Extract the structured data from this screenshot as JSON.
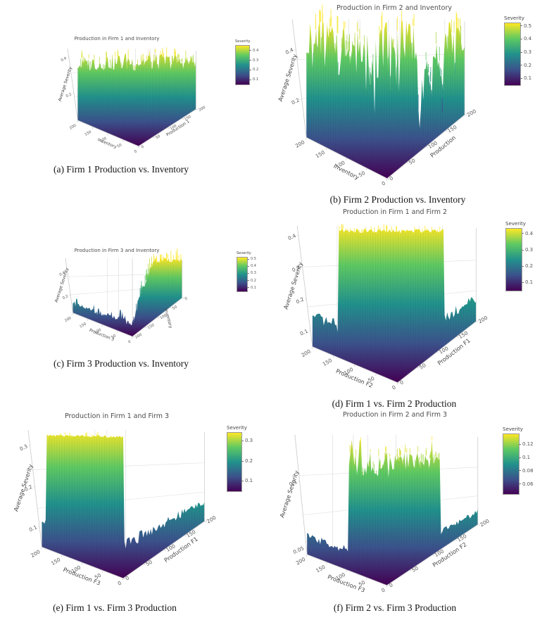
{
  "colors": {
    "viridis": [
      "#440154",
      "#3b528b",
      "#21918c",
      "#5ec962",
      "#fde725"
    ],
    "title_text": "#4d4d4d",
    "tick_text": "#555555",
    "axis_label_text": "#444444",
    "caption_text": "#141414",
    "frame_line": "#c9c9c9",
    "grid_line": "#e4e4e4"
  },
  "chart_data": [
    {
      "panel": "a",
      "type": "surface-3d",
      "title": "Production in Firm 1 and Inventory",
      "caption": "(a) Firm 1 Production vs. Inventory",
      "colormap": "viridis",
      "surface_shape": "dense-spiky-box-full-height",
      "axes": {
        "z": {
          "label": "Average Severity",
          "ticks": [
            "0.2",
            "0.4"
          ],
          "range": [
            0.05,
            0.45
          ]
        },
        "x": {
          "label": "Inventory",
          "ticks": [
            "200",
            "150",
            "100",
            "50",
            "0"
          ]
        },
        "y": {
          "label": "Production 1",
          "ticks": [
            "0",
            "50",
            "100",
            "150",
            "200"
          ]
        }
      },
      "colorbar": {
        "label": "Severity",
        "ticks": [
          "0.1",
          "0.2",
          "0.3",
          "0.4"
        ],
        "range": [
          0.05,
          0.45
        ]
      }
    },
    {
      "panel": "b",
      "type": "surface-3d",
      "title": "Production in Firm 2 and Inventory",
      "caption": "(b) Firm 2 Production vs. Inventory",
      "colormap": "viridis",
      "surface_shape": "tall-jagged-spikes-with-gaps",
      "axes": {
        "z": {
          "label": "Average Severity",
          "ticks": [
            "0.2",
            "0.4"
          ],
          "range": [
            0.05,
            0.52
          ]
        },
        "x": {
          "label": "Inventory",
          "ticks": [
            "200",
            "150",
            "100",
            "50",
            "0"
          ]
        },
        "y": {
          "label": "Production",
          "ticks": [
            "0",
            "50",
            "100",
            "150",
            "200"
          ]
        }
      },
      "colorbar": {
        "label": "Severity",
        "ticks": [
          "0.1",
          "0.2",
          "0.3",
          "0.4",
          "0.5"
        ],
        "range": [
          0.05,
          0.52
        ]
      }
    },
    {
      "panel": "c",
      "type": "surface-3d",
      "title": "Production in Firm 3 and Inventory",
      "caption": "(c) Firm 3 Production vs. Inventory",
      "colormap": "viridis",
      "surface_shape": "low-floor-with-tall-wall-on-right",
      "axes": {
        "z": {
          "label": "Average Severity",
          "ticks": [
            "0.2",
            "0.4"
          ],
          "range": [
            0.05,
            0.52
          ]
        },
        "x": {
          "label": "Production 3",
          "ticks": [
            "200",
            "150",
            "100",
            "50",
            "0"
          ]
        },
        "y": {
          "label": "Inventory",
          "ticks": [
            "0",
            "50",
            "100",
            "150",
            "200"
          ]
        }
      },
      "colorbar": {
        "label": "Severity",
        "ticks": [
          "0.1",
          "0.2",
          "0.3",
          "0.4",
          "0.5"
        ],
        "range": [
          0.05,
          0.52
        ]
      }
    },
    {
      "panel": "d",
      "type": "surface-3d",
      "title": "Production in Firm 1 and Firm 2",
      "caption": "(d) Firm 1 vs. Firm 2 Production",
      "colormap": "viridis",
      "surface_shape": "flat-top-block-behind-low-dark-bowl",
      "axes": {
        "z": {
          "label": "Average Severity",
          "ticks": [
            "0.1",
            "0.2",
            "0.3",
            "0.4"
          ],
          "range": [
            0.05,
            0.43
          ]
        },
        "x": {
          "label": "Production F2",
          "ticks": [
            "200",
            "150",
            "100",
            "50",
            "0"
          ]
        },
        "y": {
          "label": "Production F1",
          "ticks": [
            "0",
            "50",
            "100",
            "150",
            "200"
          ]
        }
      },
      "colorbar": {
        "label": "Severity",
        "ticks": [
          "0.1",
          "0.2",
          "0.3",
          "0.4"
        ],
        "range": [
          0.05,
          0.43
        ]
      }
    },
    {
      "panel": "e",
      "type": "surface-3d",
      "title": "Production in Firm 1 and Firm 3",
      "caption": "(e) Firm 1 vs. Firm 3 Production",
      "colormap": "viridis",
      "surface_shape": "smooth-flat-top-block-left-low-floor-right",
      "axes": {
        "z": {
          "label": "Average Severity",
          "ticks": [
            "0.1",
            "0.2",
            "0.3"
          ],
          "range": [
            0.05,
            0.34
          ]
        },
        "x": {
          "label": "Production F3",
          "ticks": [
            "200",
            "150",
            "100",
            "50",
            "0"
          ]
        },
        "y": {
          "label": "Production F1",
          "ticks": [
            "0",
            "50",
            "100",
            "150",
            "200"
          ]
        }
      },
      "colorbar": {
        "label": "Severity",
        "ticks": [
          "0.1",
          "0.2",
          "0.3"
        ],
        "range": [
          0.05,
          0.34
        ]
      }
    },
    {
      "panel": "f",
      "type": "surface-3d",
      "title": "Production in Firm 2 and Firm 3",
      "caption": "(f) Firm 2 vs. Firm 3 Production",
      "colormap": "viridis",
      "surface_shape": "central-spiky-mound-on-low-floor",
      "axes": {
        "z": {
          "label": "Average Severity",
          "ticks": [
            "0.05",
            "0.1"
          ],
          "range": [
            0.045,
            0.135
          ]
        },
        "x": {
          "label": "Production F3",
          "ticks": [
            "200",
            "150",
            "100",
            "50",
            "0"
          ]
        },
        "y": {
          "label": "Production F2",
          "ticks": [
            "0",
            "50",
            "100",
            "150",
            "200"
          ]
        }
      },
      "colorbar": {
        "label": "Severity",
        "ticks": [
          "0.06",
          "0.08",
          "0.1",
          "0.12"
        ],
        "range": [
          0.045,
          0.135
        ]
      }
    }
  ]
}
